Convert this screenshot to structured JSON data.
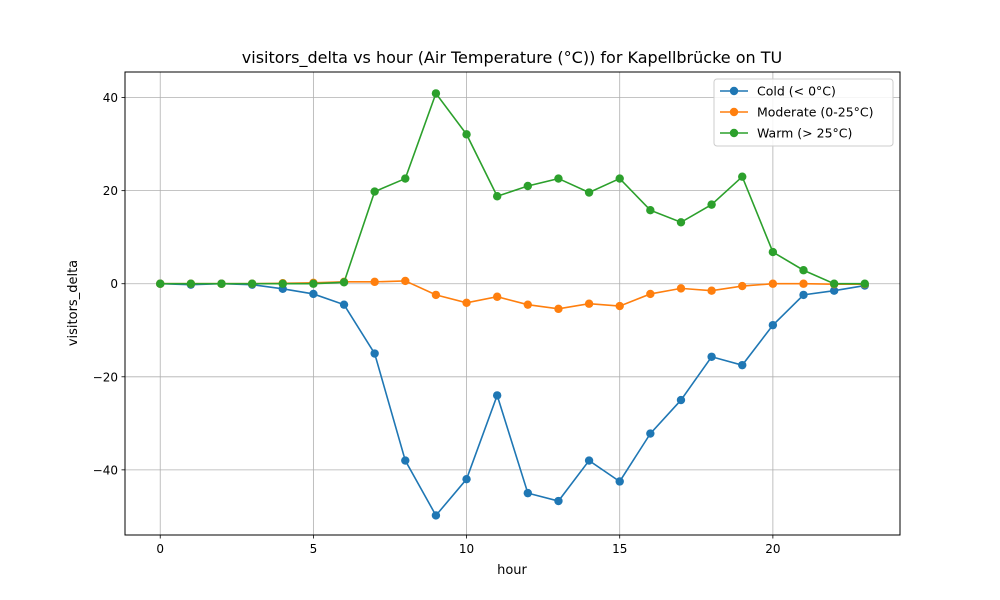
{
  "chart_data": {
    "type": "line",
    "title": "visitors_delta vs hour (Air Temperature (°C)) for Kapellbrücke on TU",
    "xlabel": "hour",
    "ylabel": "visitors_delta",
    "xlim": [
      -1.15,
      24.15
    ],
    "ylim": [
      -54,
      45.5
    ],
    "x_ticks": [
      0,
      5,
      10,
      15,
      20
    ],
    "y_ticks": [
      -40,
      -20,
      0,
      20,
      40
    ],
    "y_tick_labels": [
      "−40",
      "−20",
      "0",
      "20",
      "40"
    ],
    "grid": true,
    "legend_position": "top-right",
    "x": [
      0,
      1,
      2,
      3,
      4,
      5,
      6,
      7,
      8,
      9,
      10,
      11,
      12,
      13,
      14,
      15,
      16,
      17,
      18,
      19,
      20,
      21,
      22,
      23
    ],
    "series": [
      {
        "name": "Cold (< 0°C)",
        "color": "#1f77b4",
        "values": [
          0,
          -0.2,
          0,
          -0.2,
          -1.1,
          -2.2,
          -4.5,
          -15,
          -38,
          -49.8,
          -42,
          -24,
          -45,
          -46.7,
          -38,
          -42.5,
          -32.2,
          -25,
          -15.7,
          -17.5,
          -8.9,
          -2.4,
          -1.5,
          -0.4
        ]
      },
      {
        "name": "Moderate (0-25°C)",
        "color": "#ff7f0e",
        "values": [
          0,
          0,
          0,
          0,
          0.1,
          0.2,
          0.4,
          0.4,
          0.6,
          -2.4,
          -4.1,
          -2.8,
          -4.5,
          -5.4,
          -4.3,
          -4.8,
          -2.2,
          -1,
          -1.5,
          -0.5,
          0,
          0,
          -0.1,
          -0.1
        ]
      },
      {
        "name": "Warm (> 25°C)",
        "color": "#2ca02c",
        "values": [
          0,
          0,
          0,
          0,
          0,
          0,
          0.3,
          19.8,
          22.6,
          40.9,
          32.1,
          18.8,
          21,
          22.6,
          19.6,
          22.6,
          15.8,
          13.2,
          17,
          23,
          6.8,
          2.9,
          0,
          0
        ]
      }
    ]
  }
}
